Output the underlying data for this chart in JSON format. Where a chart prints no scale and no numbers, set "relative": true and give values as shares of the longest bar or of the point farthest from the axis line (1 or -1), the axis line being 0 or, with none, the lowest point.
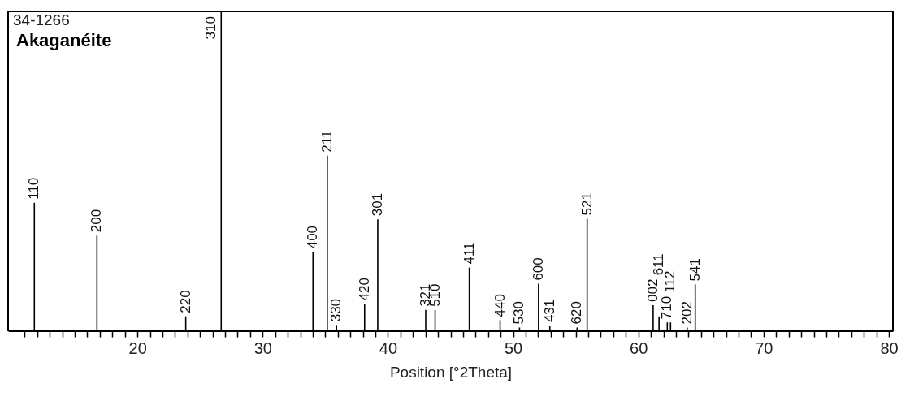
{
  "chart_data": {
    "type": "bar",
    "title": "Akaganéite",
    "subtitle": "34-1266",
    "xlabel": "Position [°2Theta]",
    "relative": true,
    "color": "#000000",
    "x": [
      11.77,
      16.77,
      23.86,
      26.69,
      34.02,
      35.16,
      35.9,
      38.14,
      39.19,
      43.02,
      43.77,
      46.5,
      48.96,
      50.51,
      52.03,
      52.93,
      55.11,
      55.91,
      61.18,
      61.65,
      62.31,
      62.57,
      63.9,
      64.54
    ],
    "values": [
      0.4,
      0.297,
      0.044,
      1,
      0.246,
      0.548,
      0.017,
      0.083,
      0.348,
      0.064,
      0.064,
      0.197,
      0.032,
      0.009,
      0.146,
      0.015,
      0.009,
      0.35,
      0.079,
      0.044,
      0.025,
      0.025,
      0.009,
      0.144
    ],
    "annotations": [
      {
        "text": "110",
        "x": 11.77,
        "y": 0.4
      },
      {
        "text": "200",
        "x": 16.77,
        "y": 0.297
      },
      {
        "text": "220",
        "x": 23.86,
        "y": 0.044
      },
      {
        "text": "310",
        "x": 26.69,
        "y": 1
      },
      {
        "text": "400",
        "x": 34.02,
        "y": 0.246
      },
      {
        "text": "211",
        "x": 35.16,
        "y": 0.548
      },
      {
        "text": "330",
        "x": 35.9,
        "y": 0.017
      },
      {
        "text": "420",
        "x": 38.14,
        "y": 0.083
      },
      {
        "text": "301",
        "x": 39.19,
        "y": 0.348
      },
      {
        "text": "321",
        "x": 43.02,
        "y": 0.064
      },
      {
        "text": "510",
        "x": 43.77,
        "y": 0.064
      },
      {
        "text": "411",
        "x": 46.5,
        "y": 0.197
      },
      {
        "text": "440",
        "x": 48.96,
        "y": 0.032
      },
      {
        "text": "530",
        "x": 50.51,
        "y": 0.009
      },
      {
        "text": "600",
        "x": 52.03,
        "y": 0.146
      },
      {
        "text": "431",
        "x": 52.93,
        "y": 0.015
      },
      {
        "text": "620",
        "x": 55.11,
        "y": 0.009
      },
      {
        "text": "521",
        "x": 55.91,
        "y": 0.35
      },
      {
        "text": "002",
        "x": 61.18,
        "y": 0.079
      },
      {
        "text": "611",
        "x": 61.65,
        "y": 0.044
      },
      {
        "text": "710",
        "x": 62.31,
        "y": 0.025
      },
      {
        "text": "112",
        "x": 62.57,
        "y": 0.025
      },
      {
        "text": "202",
        "x": 63.9,
        "y": 0.009
      },
      {
        "text": "541",
        "x": 64.54,
        "y": 0.144
      }
    ],
    "xlim": [
      10,
      80
    ],
    "xticks": [
      {
        "value": 11,
        "label": null
      },
      {
        "value": 12,
        "label": null
      },
      {
        "value": 13,
        "label": null
      },
      {
        "value": 14,
        "label": null
      },
      {
        "value": 15,
        "label": null
      },
      {
        "value": 16,
        "label": null
      },
      {
        "value": 17,
        "label": null
      },
      {
        "value": 18,
        "label": null
      },
      {
        "value": 19,
        "label": null
      },
      20,
      {
        "value": 21,
        "label": null
      },
      {
        "value": 22,
        "label": null
      },
      {
        "value": 23,
        "label": null
      },
      {
        "value": 24,
        "label": null
      },
      {
        "value": 25,
        "label": null
      },
      {
        "value": 26,
        "label": null
      },
      {
        "value": 27,
        "label": null
      },
      {
        "value": 28,
        "label": null
      },
      {
        "value": 29,
        "label": null
      },
      30,
      {
        "value": 31,
        "label": null
      },
      {
        "value": 32,
        "label": null
      },
      {
        "value": 33,
        "label": null
      },
      {
        "value": 34,
        "label": null
      },
      {
        "value": 35,
        "label": null
      },
      {
        "value": 36,
        "label": null
      },
      {
        "value": 37,
        "label": null
      },
      {
        "value": 38,
        "label": null
      },
      {
        "value": 39,
        "label": null
      },
      40,
      {
        "value": 41,
        "label": null
      },
      {
        "value": 42,
        "label": null
      },
      {
        "value": 43,
        "label": null
      },
      {
        "value": 44,
        "label": null
      },
      {
        "value": 45,
        "label": null
      },
      {
        "value": 46,
        "label": null
      },
      {
        "value": 47,
        "label": null
      },
      {
        "value": 48,
        "label": null
      },
      {
        "value": 49,
        "label": null
      },
      50,
      {
        "value": 51,
        "label": null
      },
      {
        "value": 52,
        "label": null
      },
      {
        "value": 53,
        "label": null
      },
      {
        "value": 54,
        "label": null
      },
      {
        "value": 55,
        "label": null
      },
      {
        "value": 56,
        "label": null
      },
      {
        "value": 57,
        "label": null
      },
      {
        "value": 58,
        "label": null
      },
      {
        "value": 59,
        "label": null
      },
      60,
      {
        "value": 61,
        "label": null
      },
      {
        "value": 62,
        "label": null
      },
      {
        "value": 63,
        "label": null
      },
      {
        "value": 64,
        "label": null
      },
      {
        "value": 65,
        "label": null
      },
      {
        "value": 66,
        "label": null
      },
      {
        "value": 67,
        "label": null
      },
      {
        "value": 68,
        "label": null
      },
      {
        "value": 69,
        "label": null
      },
      70,
      {
        "value": 71,
        "label": null
      },
      {
        "value": 72,
        "label": null
      },
      {
        "value": 73,
        "label": null
      },
      {
        "value": 74,
        "label": null
      },
      {
        "value": 75,
        "label": null
      },
      {
        "value": 76,
        "label": null
      },
      {
        "value": 77,
        "label": null
      },
      {
        "value": 78,
        "label": null
      },
      {
        "value": 79,
        "label": null
      },
      80
    ]
  }
}
